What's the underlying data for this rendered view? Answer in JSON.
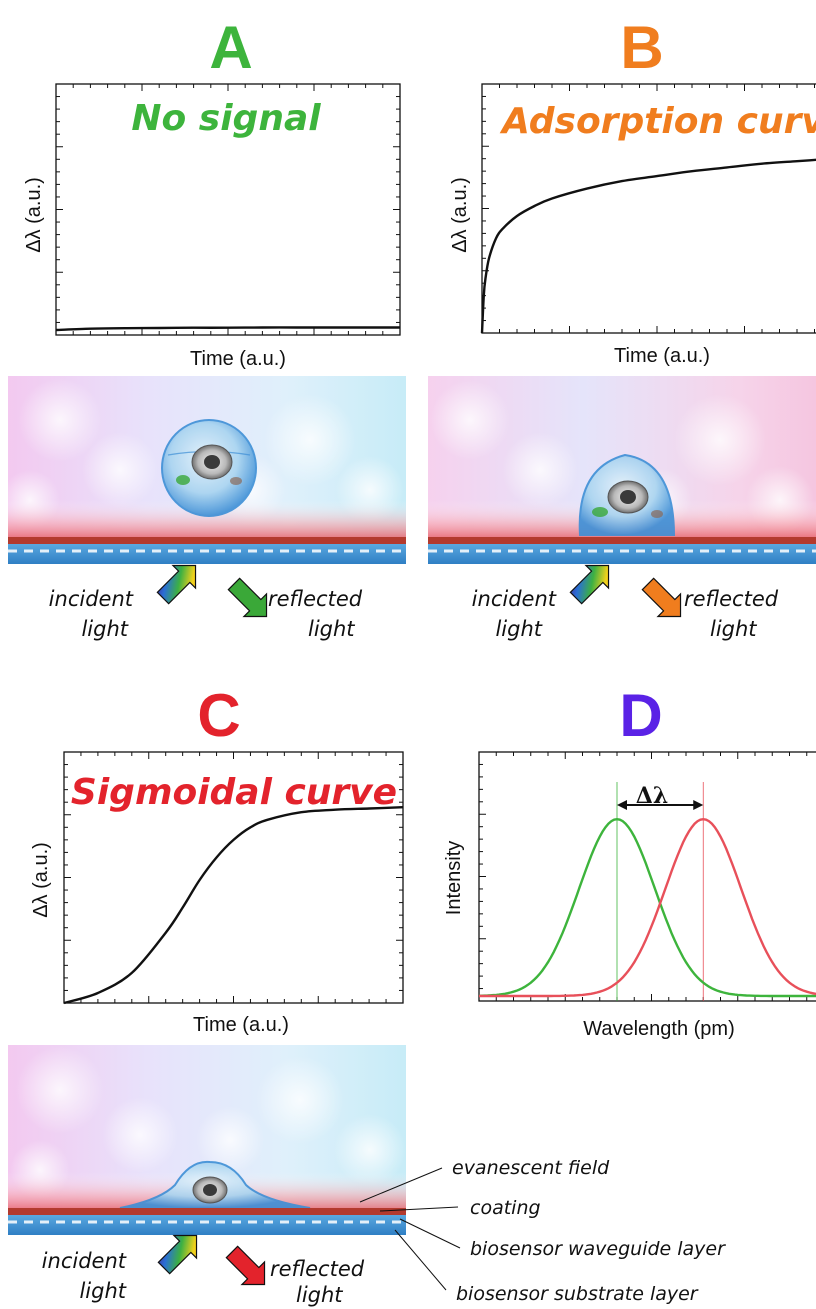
{
  "panels": {
    "A": {
      "letter": "A",
      "letter_color": "#3db43c",
      "title": "No signal",
      "title_color": "#3db43c",
      "ylabel": "Δλ (a.u.)",
      "xlabel": "Time (a.u.)",
      "incident_label": [
        "incident",
        "light"
      ],
      "reflected_label": [
        "reflected",
        "light"
      ],
      "reflected_arrow_color": "#3aa838"
    },
    "B": {
      "letter": "B",
      "letter_color": "#f07d1e",
      "title": "Adsorption curve",
      "title_color": "#f07d1e",
      "ylabel": "Δλ (a.u.)",
      "xlabel": "Time (a.u.)",
      "incident_label": [
        "incident",
        "light"
      ],
      "reflected_label": [
        "reflected",
        "light"
      ],
      "reflected_arrow_color": "#f07d1e"
    },
    "C": {
      "letter": "C",
      "letter_color": "#e3232c",
      "title": "Sigmoidal curve",
      "title_color": "#e3232c",
      "ylabel": "Δλ (a.u.)",
      "xlabel": "Time (a.u.)",
      "incident_label": [
        "incident",
        "light"
      ],
      "reflected_label": [
        "reflected",
        "light"
      ],
      "reflected_arrow_color": "#e3232c"
    },
    "D": {
      "letter": "D",
      "letter_color": "#5a22e6",
      "ylabel": "Intensity",
      "xlabel": "Wavelength (pm)",
      "delta_label": "Δλ",
      "green_color": "#3db43c",
      "red_color": "#e8505a"
    }
  },
  "callouts": {
    "evanescent": "evanescent field",
    "coating": "coating",
    "waveguide": "biosensor waveguide layer",
    "substrate": "biosensor substrate layer"
  },
  "chart_data": [
    {
      "type": "line",
      "panel": "A",
      "title": "No signal",
      "xlabel": "Time (a.u.)",
      "ylabel": "Δλ (a.u.)",
      "x": [
        0,
        0.1,
        0.2,
        0.3,
        0.4,
        0.5,
        0.6,
        0.7,
        0.8,
        0.9,
        1.0
      ],
      "y": [
        0.02,
        0.025,
        0.027,
        0.028,
        0.029,
        0.029,
        0.03,
        0.03,
        0.03,
        0.03,
        0.03
      ],
      "xlim": [
        0,
        1
      ],
      "ylim": [
        0,
        1
      ]
    },
    {
      "type": "line",
      "panel": "B",
      "title": "Adsorption curve",
      "xlabel": "Time (a.u.)",
      "ylabel": "Δλ (a.u.)",
      "x": [
        0,
        0.005,
        0.01,
        0.02,
        0.04,
        0.06,
        0.1,
        0.15,
        0.2,
        0.3,
        0.4,
        0.5,
        0.6,
        0.7,
        0.8,
        0.9,
        1.0
      ],
      "y": [
        0.0,
        0.15,
        0.22,
        0.3,
        0.38,
        0.42,
        0.47,
        0.51,
        0.54,
        0.58,
        0.61,
        0.63,
        0.65,
        0.665,
        0.68,
        0.69,
        0.7
      ],
      "xlim": [
        0,
        1
      ],
      "ylim": [
        0,
        1
      ]
    },
    {
      "type": "line",
      "panel": "C",
      "title": "Sigmoidal curve",
      "xlabel": "Time (a.u.)",
      "ylabel": "Δλ (a.u.)",
      "x": [
        0,
        0.1,
        0.2,
        0.3,
        0.35,
        0.4,
        0.45,
        0.5,
        0.55,
        0.6,
        0.7,
        0.8,
        0.9,
        1.0
      ],
      "y": [
        0.0,
        0.04,
        0.12,
        0.28,
        0.38,
        0.49,
        0.58,
        0.65,
        0.7,
        0.73,
        0.76,
        0.77,
        0.775,
        0.78
      ],
      "xlim": [
        0,
        1
      ],
      "ylim": [
        0,
        1
      ]
    },
    {
      "type": "line",
      "panel": "D",
      "xlabel": "Wavelength (pm)",
      "ylabel": "Intensity",
      "series": [
        {
          "color": "#3db43c",
          "peak_x": 0.4,
          "width": 0.11,
          "peak_y": 0.73,
          "base_y": 0.02
        },
        {
          "color": "#e8505a",
          "peak_x": 0.65,
          "width": 0.11,
          "peak_y": 0.73,
          "base_y": 0.02
        }
      ],
      "annotation": "Δλ",
      "xlim": [
        0,
        1
      ],
      "ylim": [
        0,
        1
      ]
    }
  ]
}
